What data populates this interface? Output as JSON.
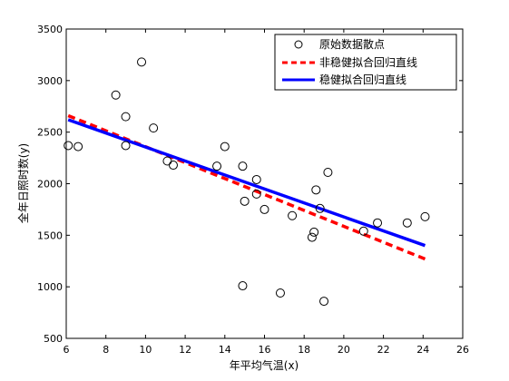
{
  "chart_data": {
    "type": "scatter",
    "xlabel": "年平均气温(x)",
    "ylabel": "全年日照时数(y)",
    "xlim": [
      6,
      26
    ],
    "ylim": [
      500,
      3500
    ],
    "xticks": [
      6,
      8,
      10,
      12,
      14,
      16,
      18,
      20,
      22,
      24,
      26
    ],
    "yticks": [
      500,
      1000,
      1500,
      2000,
      2500,
      3000,
      3500
    ],
    "grid": false,
    "legend_position": "top-right",
    "series": [
      {
        "name": "原始数据散点",
        "kind": "scatter",
        "color": "#000000",
        "marker": "open-circle",
        "points": [
          [
            6.1,
            2370
          ],
          [
            6.6,
            2360
          ],
          [
            8.5,
            2860
          ],
          [
            9.0,
            2650
          ],
          [
            9.0,
            2370
          ],
          [
            9.8,
            3180
          ],
          [
            10.4,
            2540
          ],
          [
            11.1,
            2220
          ],
          [
            11.4,
            2180
          ],
          [
            13.6,
            2170
          ],
          [
            14.0,
            2360
          ],
          [
            14.9,
            2170
          ],
          [
            15.0,
            1830
          ],
          [
            15.6,
            2040
          ],
          [
            15.6,
            1900
          ],
          [
            16.0,
            1750
          ],
          [
            17.4,
            1690
          ],
          [
            18.4,
            1480
          ],
          [
            18.5,
            1530
          ],
          [
            18.6,
            1940
          ],
          [
            18.8,
            1760
          ],
          [
            19.2,
            2110
          ],
          [
            21.0,
            1540
          ],
          [
            21.7,
            1620
          ],
          [
            23.2,
            1620
          ],
          [
            24.1,
            1680
          ],
          [
            14.9,
            1010
          ],
          [
            16.8,
            940
          ],
          [
            19.0,
            860
          ]
        ]
      },
      {
        "name": "非稳健拟合回归直线",
        "kind": "line",
        "style": "dashed",
        "color": "#ff0000",
        "x": [
          6.1,
          24.1
        ],
        "y": [
          2660,
          1270
        ]
      },
      {
        "name": "稳健拟合回归直线",
        "kind": "line",
        "style": "solid",
        "color": "#0000ff",
        "x": [
          6.1,
          24.1
        ],
        "y": [
          2620,
          1400
        ]
      }
    ]
  }
}
